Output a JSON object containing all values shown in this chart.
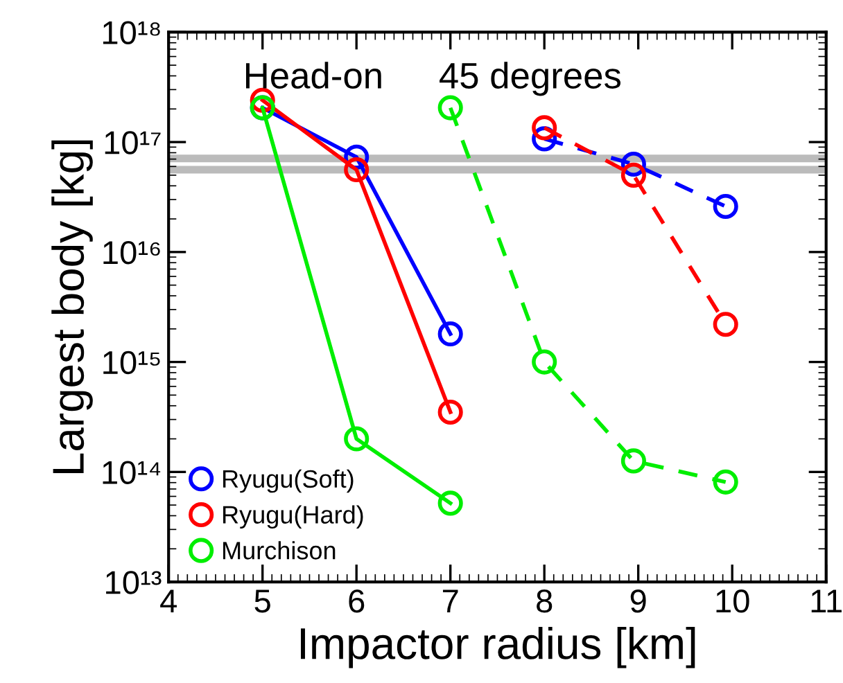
{
  "chart_data": {
    "type": "line",
    "xlabel": "Impactor radius [km]",
    "ylabel": "Largest body [kg]",
    "log": "y",
    "xlim": [
      4,
      11
    ],
    "xticks": [
      4,
      5,
      6,
      7,
      8,
      9,
      10,
      11
    ],
    "ylim": [
      10000000000000.0,
      1e+18
    ],
    "yticks": [
      {
        "value": 10000000000000.0,
        "label": "10¹³"
      },
      {
        "value": 100000000000000.0,
        "label": "10¹⁴"
      },
      {
        "value": 1000000000000000.0,
        "label": "10¹⁵"
      },
      {
        "value": 1e+16,
        "label": "10¹⁶"
      },
      {
        "value": 1e+17,
        "label": "10¹⁷"
      },
      {
        "value": 1e+18,
        "label": "10¹⁸"
      }
    ],
    "marker": "circle",
    "grid": false,
    "legend": "bottom left",
    "ref_lines": [
      {
        "axis": "y",
        "value": 7.1e+16,
        "color": "#bbbbbb"
      },
      {
        "axis": "y",
        "value": 5.6e+16,
        "color": "#bbbbbb"
      }
    ],
    "annotations": [
      "Head-on",
      "45 degrees"
    ],
    "series": [
      {
        "name": "Ryugu(Soft)",
        "color": "#0000ff",
        "line_style": "solid",
        "x": [
          5,
          6,
          7
        ],
        "values": [
          2.05e+17,
          7.3e+16,
          1800000000000000.0
        ]
      },
      {
        "name": "Ryugu(Hard)",
        "color": "#ff0000",
        "line_style": "solid",
        "x": [
          5,
          6,
          7
        ],
        "values": [
          2.4e+17,
          5.6e+16,
          350000000000000.0
        ]
      },
      {
        "name": "Murchison",
        "color": "#00ee00",
        "line_style": "solid",
        "x": [
          5,
          6,
          7
        ],
        "values": [
          2.05e+17,
          200000000000000.0,
          52000000000000.0
        ]
      },
      {
        "color": "#0000ff",
        "line_style": "dashed",
        "x": [
          8,
          8.95,
          9.93
        ],
        "values": [
          1.07e+17,
          6.3e+16,
          2.6e+16
        ]
      },
      {
        "color": "#ff0000",
        "line_style": "dashed",
        "x": [
          8,
          8.95,
          9.93
        ],
        "values": [
          1.35e+17,
          5e+16,
          2200000000000000.0
        ]
      },
      {
        "color": "#00ee00",
        "line_style": "dashed",
        "x": [
          7,
          8,
          8.95,
          9.93
        ],
        "values": [
          2.05e+17,
          1000000000000000.0,
          126000000000000.0,
          81000000000000.0
        ]
      }
    ]
  }
}
